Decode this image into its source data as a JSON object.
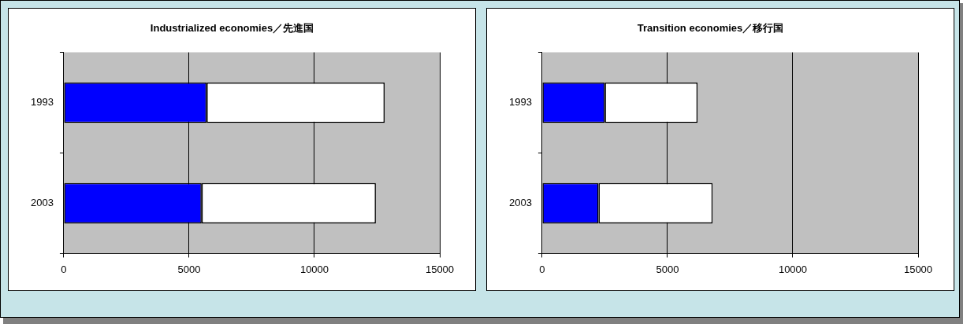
{
  "chart_data": [
    {
      "type": "bar",
      "orientation": "horizontal",
      "stacked": true,
      "title": "Industrialized economies／先進国",
      "categories": [
        "1993",
        "2003"
      ],
      "series": [
        {
          "color": "#0000ff",
          "values": [
            5700,
            5500
          ]
        },
        {
          "color": "#ffffff",
          "values": [
            7100,
            6950
          ]
        }
      ],
      "xlim": [
        0,
        15000
      ],
      "xticks": [
        0,
        5000,
        10000,
        15000
      ],
      "grid": "x",
      "legend": false
    },
    {
      "type": "bar",
      "orientation": "horizontal",
      "stacked": true,
      "title": "Transition economies／移行国",
      "categories": [
        "1993",
        "2003"
      ],
      "series": [
        {
          "color": "#0000ff",
          "values": [
            2500,
            2250
          ]
        },
        {
          "color": "#ffffff",
          "values": [
            3700,
            4550
          ]
        }
      ],
      "xlim": [
        0,
        15000
      ],
      "xticks": [
        0,
        5000,
        10000,
        15000
      ],
      "grid": "x",
      "legend": false
    }
  ]
}
